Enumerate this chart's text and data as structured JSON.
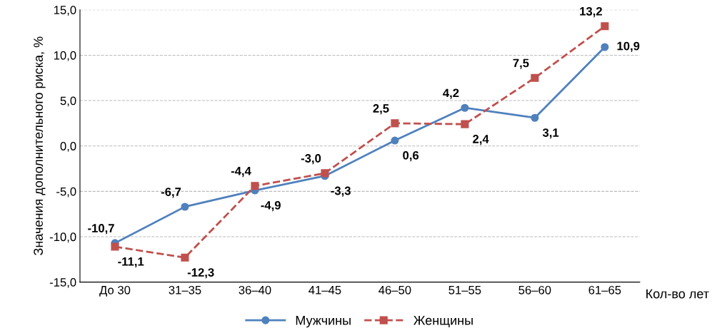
{
  "chart_data": {
    "type": "line",
    "ylabel": "Значения дополнительного риска, %",
    "xlabel": "Кол-во лет",
    "categories": [
      "До 30",
      "31–35",
      "36–40",
      "41–45",
      "46–50",
      "51–55",
      "56–60",
      "61–65"
    ],
    "series": [
      {
        "name": "Мужчины",
        "color": "#4f81bd",
        "marker": "circle",
        "line_style": "solid",
        "values": [
          -10.7,
          -6.7,
          -4.9,
          -3.3,
          0.6,
          4.2,
          3.1,
          10.9
        ],
        "value_labels": [
          "-10,7",
          "-6,7",
          "-4,9",
          "-3,3",
          "0,6",
          "4,2",
          "3,1",
          "10,9"
        ]
      },
      {
        "name": "Женщины",
        "color": "#c0504d",
        "marker": "square",
        "line_style": "dashed",
        "values": [
          -11.1,
          -12.3,
          -4.4,
          -3.0,
          2.5,
          2.4,
          7.5,
          13.2
        ],
        "value_labels": [
          "-11,1",
          "-12,3",
          "-4,4",
          "-3,0",
          "2,5",
          "2,4",
          "7,5",
          "13,2"
        ]
      }
    ],
    "ylim": [
      -15,
      15
    ],
    "yticks": [
      {
        "value": -15,
        "label": "-15,0"
      },
      {
        "value": -10,
        "label": "-10,0"
      },
      {
        "value": -5,
        "label": "-5,0"
      },
      {
        "value": 0,
        "label": "0,0"
      },
      {
        "value": 5,
        "label": "5,0"
      },
      {
        "value": 10,
        "label": "10,0"
      },
      {
        "value": 15,
        "label": "15,0"
      }
    ],
    "grid": "y",
    "legend": "bottom"
  }
}
